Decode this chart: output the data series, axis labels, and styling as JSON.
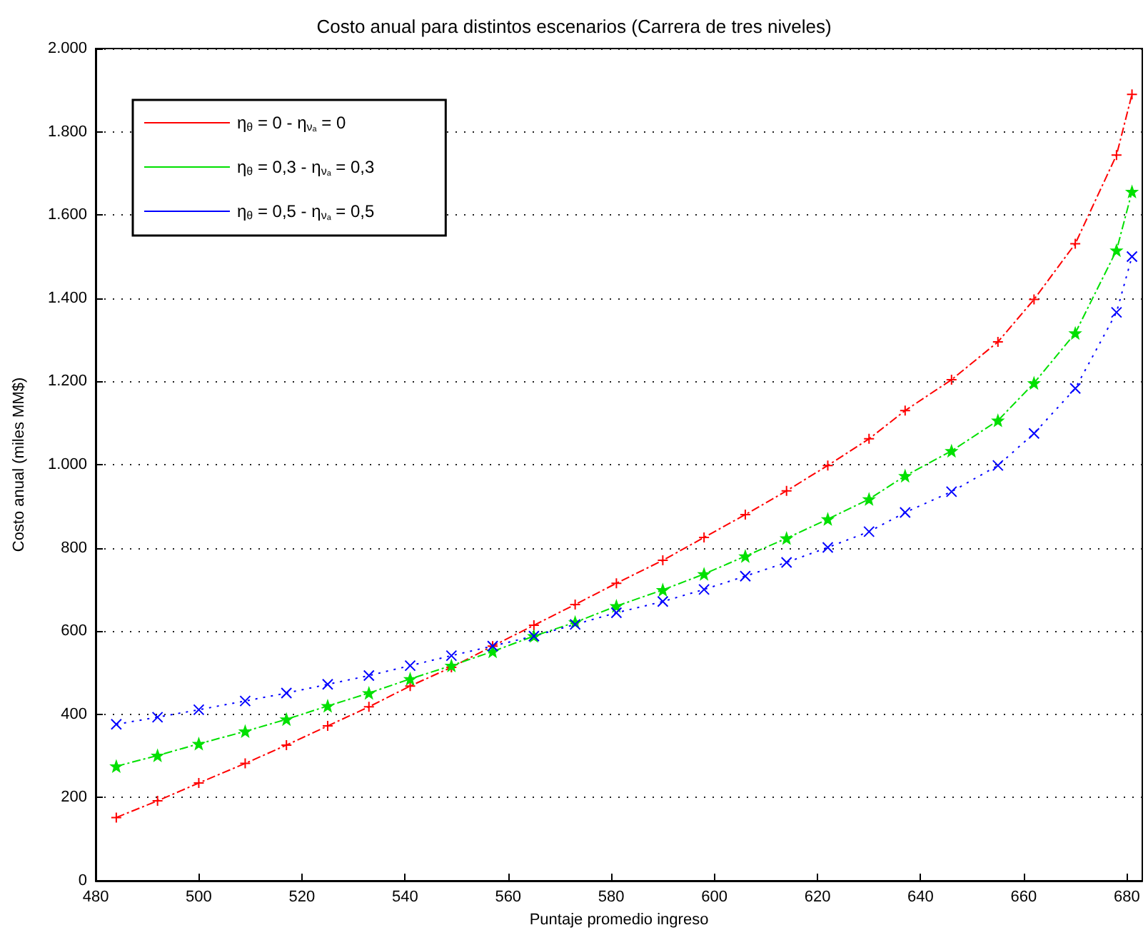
{
  "chart_data": {
    "type": "line",
    "title": "Costo anual para distintos escenarios (Carrera de tres niveles)",
    "xlabel": "Puntaje promedio ingreso",
    "ylabel": "Costo anual (miles MM$)",
    "x": [
      484,
      492,
      500,
      509,
      517,
      525,
      533,
      541,
      549,
      557,
      565,
      573,
      581,
      590,
      598,
      606,
      614,
      622,
      630,
      637,
      646,
      655,
      662,
      670,
      678,
      681
    ],
    "series": [
      {
        "name": "η$_{θ}$ = 0 - η$_{νₐ}$ = 0",
        "color": "#ff0000",
        "marker": "cross",
        "line_style": "dashed",
        "values": [
          152,
          192,
          235,
          282,
          326,
          372,
          418,
          468,
          513,
          564,
          614,
          664,
          715,
          770,
          825,
          880,
          937,
          998,
          1062,
          1130,
          1204,
          1295,
          1397,
          1531,
          1744,
          1890
        ]
      },
      {
        "name": "η$_{θ}$ = 0,3 - η$_{νₐ}$ = 0,3",
        "color": "#00e000",
        "marker": "star",
        "line_style": "dashed",
        "values": [
          275,
          301,
          329,
          359,
          388,
          420,
          451,
          485,
          517,
          551,
          588,
          621,
          660,
          699,
          737,
          780,
          823,
          869,
          917,
          973,
          1033,
          1106,
          1196,
          1316,
          1515,
          1656
        ]
      },
      {
        "name": "η$_{θ}$ = 0,5 - η$_{νₐ}$ = 0,5",
        "color": "#0000ff",
        "marker": "x",
        "line_style": "dotted",
        "values": [
          376,
          393,
          411,
          432,
          451,
          472,
          493,
          517,
          541,
          564,
          588,
          616,
          644,
          671,
          700,
          732,
          765,
          801,
          839,
          885,
          935,
          998,
          1075,
          1183,
          1366,
          1500
        ]
      }
    ],
    "xlim": [
      480,
      683
    ],
    "xticks": [
      480,
      500,
      520,
      540,
      560,
      580,
      600,
      620,
      640,
      660,
      680
    ],
    "ylim": [
      0,
      2000
    ],
    "yticks": [
      0,
      200,
      400,
      600,
      800,
      {
        "value": 1000,
        "label": "1.000"
      },
      {
        "value": 1200,
        "label": "1.200"
      },
      {
        "value": 1400,
        "label": "1.400"
      },
      {
        "value": 1600,
        "label": "1.600"
      },
      {
        "value": 1800,
        "label": "1.800"
      },
      {
        "value": 2000,
        "label": "2.000"
      }
    ],
    "grid": "y",
    "legend": "top left"
  }
}
